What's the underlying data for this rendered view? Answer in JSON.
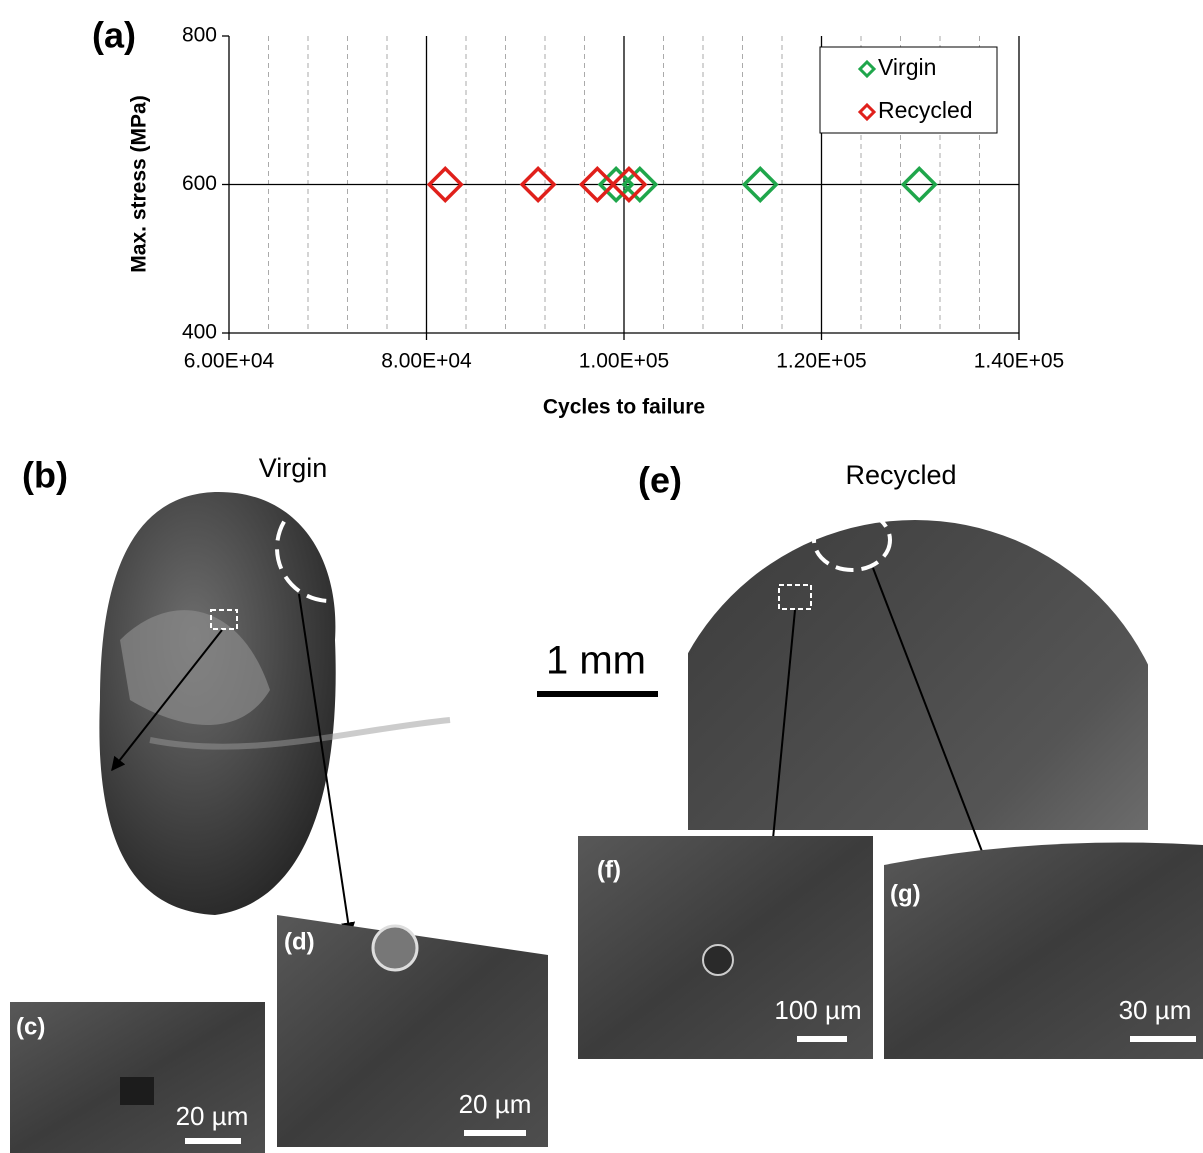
{
  "chart_data": {
    "type": "scatter",
    "panel_label": "(a)",
    "xlabel": "Cycles to failure",
    "ylabel": "Max. stress (MPa)",
    "xlim": [
      60000,
      140000
    ],
    "ylim": [
      400,
      800
    ],
    "xticks": [
      {
        "value": 60000,
        "label": "6.00E+04"
      },
      {
        "value": 80000,
        "label": "8.00E+04"
      },
      {
        "value": 100000,
        "label": "1.00E+05"
      },
      {
        "value": 120000,
        "label": "1.20E+05"
      },
      {
        "value": 140000,
        "label": "1.40E+05"
      }
    ],
    "minor_xticks": [
      64000,
      68000,
      72000,
      76000,
      84000,
      88000,
      92000,
      96000,
      104000,
      108000,
      112000,
      116000,
      124000,
      128000,
      132000,
      136000
    ],
    "yticks": [
      400,
      600,
      800
    ],
    "grid": true,
    "legend": "upper right",
    "series": [
      {
        "name": "Virgin",
        "color": "#1fa64b",
        "x": [
          99200,
          101600,
          113800,
          129900
        ],
        "values": [
          600,
          600,
          600,
          600
        ]
      },
      {
        "name": "Recycled",
        "color": "#e0201b",
        "x": [
          81900,
          91300,
          97300,
          100500
        ],
        "values": [
          600,
          600,
          600,
          600
        ]
      }
    ]
  },
  "panels": [
    {
      "label": "(b)",
      "title": "Virgin"
    },
    {
      "label": "(c)",
      "scale": "20 µm"
    },
    {
      "label": "(d)",
      "scale": "20 µm"
    },
    {
      "label": "(e)",
      "title": "Recycled"
    },
    {
      "label": "(f)",
      "scale": "100 µm"
    },
    {
      "label": "(g)",
      "scale": "30 µm"
    }
  ],
  "scale_bar": "1 mm"
}
